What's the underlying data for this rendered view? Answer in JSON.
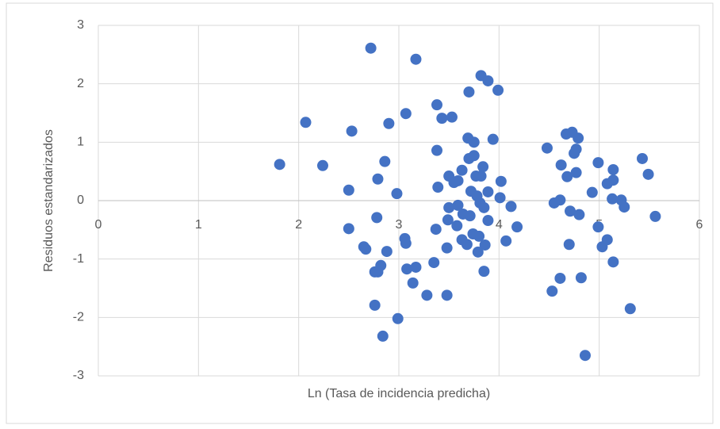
{
  "chart_data": {
    "type": "scatter",
    "xlabel": "Ln (Tasa de incidencia predicha)",
    "ylabel": "Residuos estandarizados",
    "color": "#4472c4",
    "x": [
      1.81,
      2.24,
      2.07,
      2.53,
      2.5,
      2.5,
      2.72,
      2.79,
      2.86,
      2.9,
      2.78,
      2.65,
      2.67,
      2.88,
      2.82,
      2.79,
      2.76,
      2.76,
      2.84,
      2.98,
      2.99,
      3.17,
      3.07,
      3.06,
      3.07,
      3.08,
      3.17,
      3.14,
      3.28,
      3.38,
      3.43,
      3.53,
      3.38,
      3.39,
      3.37,
      3.35,
      3.48,
      3.82,
      3.7,
      3.89,
      3.99,
      3.69,
      3.75,
      3.94,
      3.7,
      3.75,
      3.63,
      3.84,
      3.5,
      3.59,
      3.55,
      3.77,
      3.82,
      4.02,
      3.89,
      3.72,
      3.78,
      4.01,
      3.81,
      3.5,
      3.59,
      3.85,
      4.12,
      3.64,
      3.71,
      3.89,
      3.49,
      3.58,
      4.18,
      3.74,
      3.8,
      4.07,
      3.63,
      3.68,
      3.86,
      3.79,
      3.48,
      3.85,
      4.48,
      4.73,
      4.67,
      4.79,
      4.77,
      4.75,
      4.62,
      4.68,
      4.77,
      4.99,
      4.93,
      5.14,
      5.14,
      5.08,
      5.43,
      5.49,
      4.61,
      4.55,
      4.71,
      4.8,
      5.13,
      5.22,
      5.25,
      5.56,
      4.99,
      5.08,
      5.03,
      4.7,
      5.14,
      4.61,
      4.82,
      4.53,
      5.31,
      4.86
    ],
    "values": [
      0.62,
      0.6,
      1.34,
      1.19,
      0.18,
      -0.48,
      2.61,
      0.37,
      0.67,
      1.32,
      -0.29,
      -0.79,
      -0.83,
      -0.87,
      -1.11,
      -1.22,
      -1.22,
      -1.79,
      -2.32,
      0.12,
      -2.02,
      2.42,
      1.49,
      -0.65,
      -0.73,
      -1.17,
      -1.14,
      -1.41,
      -1.62,
      1.64,
      1.41,
      1.43,
      0.86,
      0.23,
      -0.49,
      -1.06,
      -1.62,
      2.14,
      1.86,
      2.05,
      1.89,
      1.07,
      1.0,
      1.05,
      0.72,
      0.77,
      0.52,
      0.58,
      0.42,
      0.34,
      0.31,
      0.42,
      0.42,
      0.33,
      0.15,
      0.16,
      0.08,
      0.05,
      -0.04,
      -0.12,
      -0.08,
      -0.12,
      -0.1,
      -0.23,
      -0.26,
      -0.34,
      -0.33,
      -0.43,
      -0.45,
      -0.57,
      -0.61,
      -0.69,
      -0.67,
      -0.75,
      -0.76,
      -0.88,
      -0.81,
      -1.21,
      0.9,
      1.17,
      1.14,
      1.07,
      0.88,
      0.81,
      0.61,
      0.41,
      0.48,
      0.65,
      0.14,
      0.53,
      0.35,
      0.29,
      0.72,
      0.45,
      0.01,
      -0.04,
      -0.18,
      -0.24,
      0.03,
      0.01,
      -0.11,
      -0.27,
      -0.45,
      -0.67,
      -0.79,
      -0.75,
      -1.05,
      -1.33,
      -1.32,
      -1.55,
      -1.85,
      -2.65
    ],
    "xlim": [
      0,
      6
    ],
    "xticks": [
      0,
      1,
      2,
      3,
      4,
      5,
      6
    ],
    "ylim": [
      -3,
      3
    ],
    "yticks": [
      -3,
      -2,
      -1,
      0,
      1,
      2,
      3
    ],
    "grid": true
  }
}
